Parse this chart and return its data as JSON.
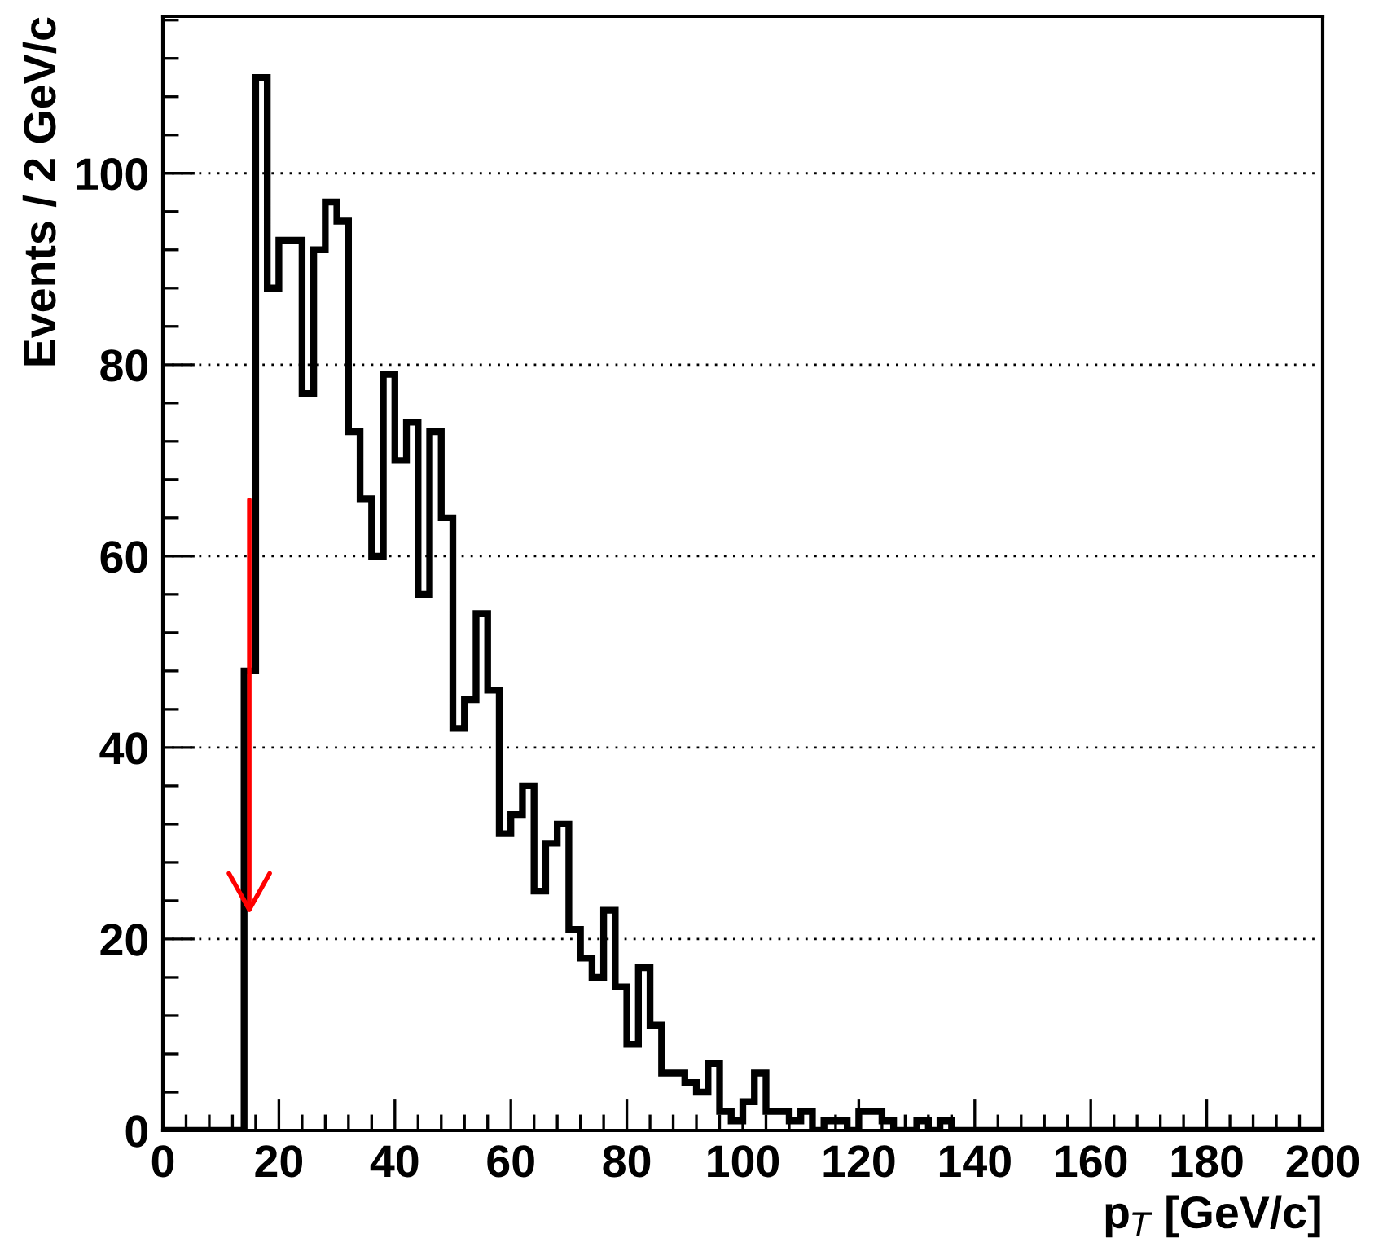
{
  "chart_data": {
    "type": "histogram",
    "xlabel": "p$_{T}$ [GeV/c]",
    "ylabel": "Events / 2 GeV/c",
    "bins": [
      0,
      2,
      4,
      6,
      8,
      10,
      12,
      14,
      16,
      18,
      20,
      22,
      24,
      26,
      28,
      30,
      32,
      34,
      36,
      38,
      40,
      42,
      44,
      46,
      48,
      50,
      52,
      54,
      56,
      58,
      60,
      62,
      64,
      66,
      68,
      70,
      72,
      74,
      76,
      78,
      80,
      82,
      84,
      86,
      88,
      90,
      92,
      94,
      96,
      98,
      100,
      102,
      104,
      106,
      108,
      110,
      112,
      114,
      116,
      118,
      120,
      122,
      124,
      126,
      128,
      130,
      132,
      134,
      136,
      138,
      140,
      142,
      144,
      146,
      148,
      150,
      152,
      154,
      156,
      158,
      160,
      162,
      164,
      166,
      168,
      170,
      172,
      174,
      176,
      178,
      180,
      182,
      184,
      186,
      188,
      190,
      192,
      194,
      196,
      198,
      200
    ],
    "values": [
      0,
      0,
      0,
      0,
      0,
      0,
      0,
      48,
      110,
      88,
      93,
      93,
      77,
      92,
      97,
      95,
      73,
      66,
      60,
      79,
      70,
      74,
      56,
      73,
      64,
      42,
      45,
      54,
      46,
      31,
      33,
      36,
      25,
      30,
      32,
      21,
      18,
      16,
      23,
      15,
      9,
      17,
      11,
      6,
      6,
      5,
      4,
      7,
      2,
      1,
      3,
      6,
      2,
      2,
      1,
      2,
      0,
      1,
      1,
      0,
      2,
      2,
      1,
      0,
      0,
      1,
      0,
      1,
      0,
      0,
      0,
      0,
      0,
      0,
      0,
      0,
      0,
      0,
      0,
      0,
      0,
      0,
      0,
      0,
      0,
      0,
      0,
      0,
      0,
      0,
      0,
      0,
      0,
      0,
      0,
      0,
      0,
      0,
      0,
      0
    ],
    "color": "#000000",
    "xlim": [
      0,
      200
    ],
    "xticks": [
      0,
      20,
      40,
      60,
      80,
      100,
      120,
      140,
      160,
      180,
      200
    ],
    "ylim": [
      0,
      116.4
    ],
    "yticks": [
      0,
      20,
      40,
      60,
      80,
      100
    ],
    "grid": "y"
  }
}
